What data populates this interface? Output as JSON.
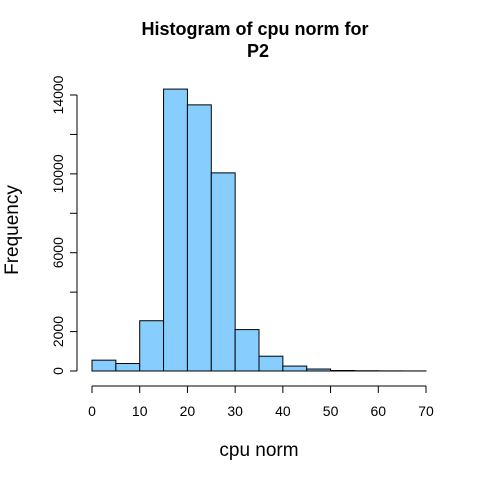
{
  "chart_data": {
    "type": "bar",
    "title_lines": [
      "Histogram of cpu norm for",
      "P2"
    ],
    "xlabel": "cpu norm",
    "ylabel": "Frequency",
    "bin_width": 5,
    "bins": [
      {
        "x0": 0,
        "x1": 5,
        "count": 550
      },
      {
        "x0": 5,
        "x1": 10,
        "count": 380
      },
      {
        "x0": 10,
        "x1": 15,
        "count": 2550
      },
      {
        "x0": 15,
        "x1": 20,
        "count": 14300
      },
      {
        "x0": 20,
        "x1": 25,
        "count": 13500
      },
      {
        "x0": 25,
        "x1": 30,
        "count": 10050
      },
      {
        "x0": 30,
        "x1": 35,
        "count": 2100
      },
      {
        "x0": 35,
        "x1": 40,
        "count": 750
      },
      {
        "x0": 40,
        "x1": 45,
        "count": 250
      },
      {
        "x0": 45,
        "x1": 50,
        "count": 100
      },
      {
        "x0": 50,
        "x1": 55,
        "count": 25
      },
      {
        "x0": 55,
        "x1": 60,
        "count": 12
      },
      {
        "x0": 60,
        "x1": 65,
        "count": 6
      },
      {
        "x0": 65,
        "x1": 70,
        "count": 3
      }
    ],
    "xlim": [
      0,
      70
    ],
    "ylim": [
      0,
      14000
    ],
    "x_ticks": [
      0,
      10,
      20,
      30,
      40,
      50,
      60,
      70
    ],
    "y_ticks": [
      0,
      2000,
      4000,
      6000,
      8000,
      10000,
      12000,
      14000
    ],
    "y_tick_labels": [
      {
        "value": 0,
        "label": "0"
      },
      {
        "value": 2000,
        "label": "2000"
      },
      {
        "value": 6000,
        "label": "6000"
      },
      {
        "value": 10000,
        "label": "10000"
      },
      {
        "value": 14000,
        "label": "14000"
      }
    ],
    "bar_color": "#87CEFF",
    "bar_edge_color": "#000000",
    "grid": false
  }
}
